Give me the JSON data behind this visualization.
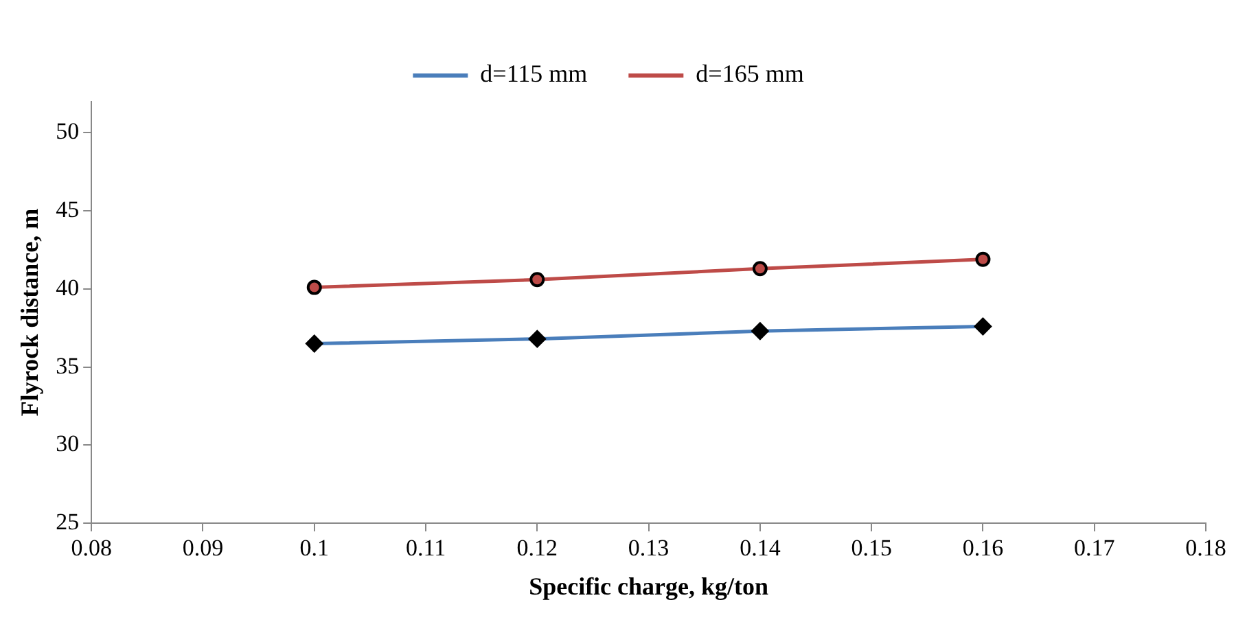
{
  "chart_data": {
    "type": "line",
    "xlabel": "Specific charge, kg/ton",
    "ylabel": "Flyrock distance, m",
    "x": [
      0.1,
      0.12,
      0.14,
      0.16
    ],
    "series": [
      {
        "name": "d=115 mm",
        "color": "#4a7ebb",
        "marker": "diamond",
        "values": [
          36.5,
          36.8,
          37.3,
          37.6
        ]
      },
      {
        "name": "d=165 mm",
        "color": "#be4b48",
        "marker": "circle",
        "values": [
          40.1,
          40.6,
          41.3,
          41.9
        ]
      }
    ],
    "xlim": [
      0.08,
      0.18
    ],
    "xticks": [
      0.08,
      0.09,
      0.1,
      0.11,
      0.12,
      0.13,
      0.14,
      0.15,
      0.16,
      0.17,
      0.18
    ],
    "ylim": [
      25,
      52
    ],
    "yticks": [
      25,
      30,
      35,
      40,
      45,
      50
    ],
    "grid": false,
    "legend": "top"
  }
}
